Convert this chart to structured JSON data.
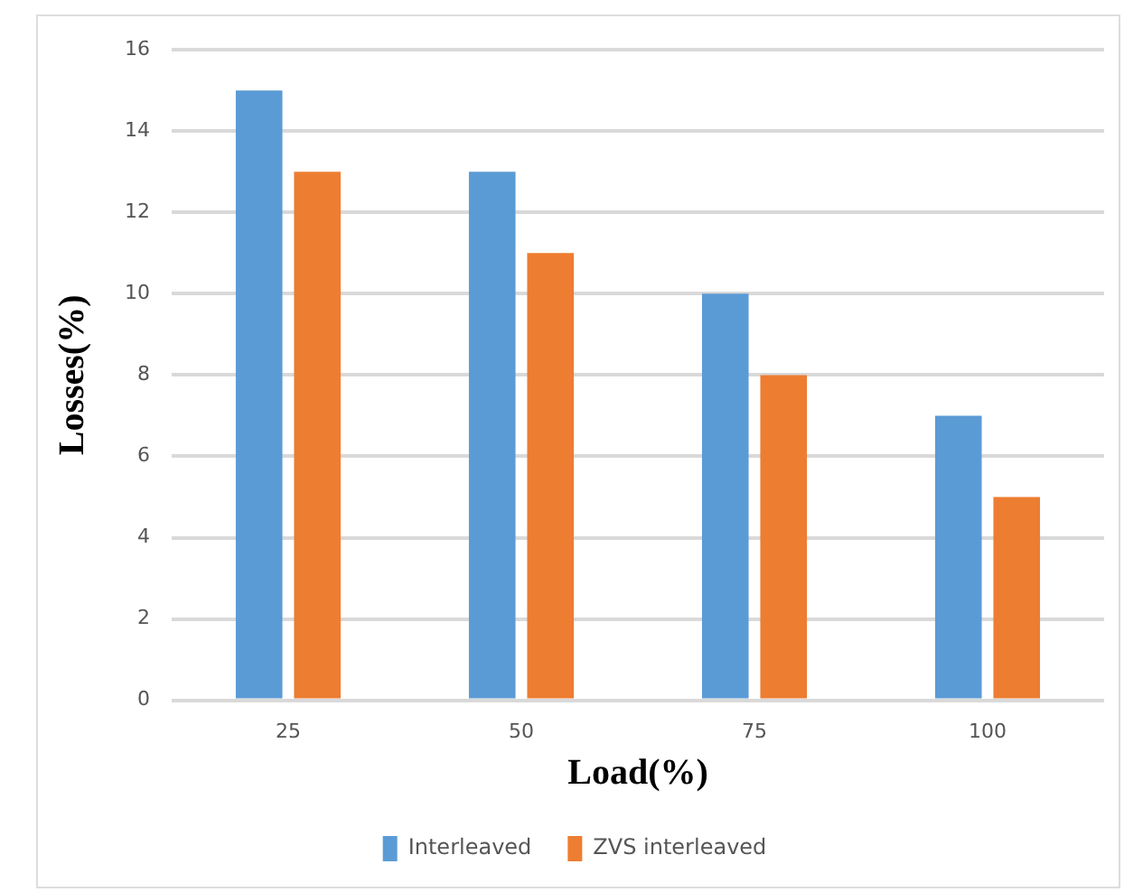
{
  "chart_data": {
    "type": "bar",
    "xlabel": "Load(%)",
    "ylabel": "Losses(%)",
    "categories": [
      "25",
      "50",
      "75",
      "100"
    ],
    "series": [
      {
        "name": "Interleaved",
        "color": "#5b9bd5",
        "values": [
          15,
          13,
          10,
          7
        ]
      },
      {
        "name": "ZVS interleaved",
        "color": "#ed7d31",
        "values": [
          13,
          11,
          8,
          5
        ]
      }
    ],
    "ylim": [
      0,
      16
    ],
    "yticks": [
      0,
      2,
      4,
      6,
      8,
      10,
      12,
      14,
      16
    ],
    "grid": "y",
    "legend": "bottom"
  }
}
